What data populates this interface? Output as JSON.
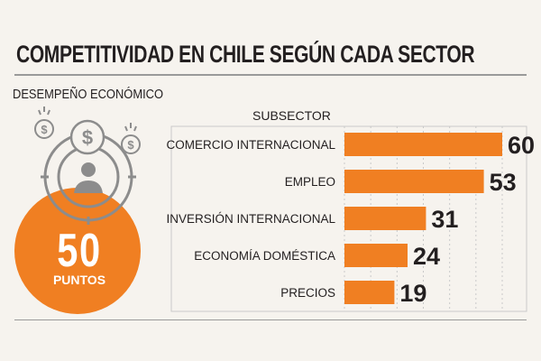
{
  "header": {
    "title": "COMPETITIVIDAD EN CHILE SEGÚN CADA SECTOR",
    "section_label": "DESEMPEÑO ECONÓMICO"
  },
  "score": {
    "value": "50",
    "unit": "PUNTOS"
  },
  "icons": [
    "dollar-coin-icon",
    "person-icon"
  ],
  "colors": {
    "bar": "#f07f22",
    "circle": "#f07f22",
    "icon_stroke": "#8c8c8c",
    "text": "#231f20"
  },
  "chart_data": {
    "type": "bar",
    "orientation": "horizontal",
    "column_header": "SUBSECTOR",
    "categories": [
      "COMERCIO INTERNACIONAL",
      "EMPLEO",
      "INVERSIÓN INTERNACIONAL",
      "ECONOMÍA DOMÉSTICA",
      "PRECIOS"
    ],
    "values": [
      60,
      53,
      31,
      24,
      19
    ],
    "value_labels": [
      "60",
      "53",
      "31",
      "24",
      "19"
    ],
    "xlim": [
      0,
      60
    ],
    "grid": true
  }
}
